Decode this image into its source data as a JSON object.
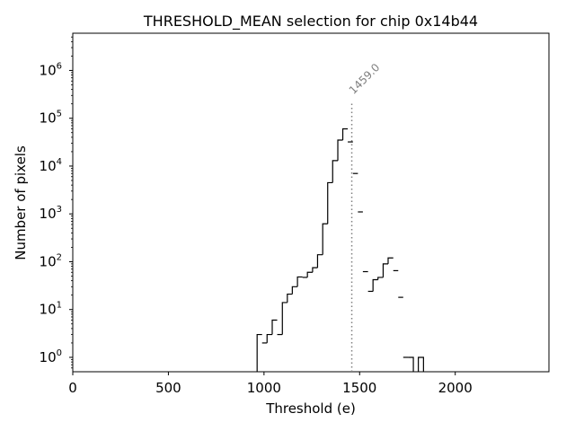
{
  "chart_data": {
    "type": "histogram",
    "title": "THRESHOLD_MEAN selection for chip 0x14b44",
    "xlabel": "Threshold (e)",
    "ylabel": "Number of pixels",
    "xlim": [
      0,
      2490
    ],
    "ylim": [
      0.5,
      6000000
    ],
    "yscale": "log",
    "x_ticks": [
      0,
      500,
      1000,
      1500,
      2000
    ],
    "x_tick_labels": [
      "0",
      "500",
      "1000",
      "1500",
      "2000"
    ],
    "y_ticks": [
      1,
      10,
      100,
      1000,
      10000,
      100000,
      1000000
    ],
    "y_tick_labels": [
      {
        "base": "10",
        "exp": "0"
      },
      {
        "base": "10",
        "exp": "1"
      },
      {
        "base": "10",
        "exp": "2"
      },
      {
        "base": "10",
        "exp": "3"
      },
      {
        "base": "10",
        "exp": "4"
      },
      {
        "base": "10",
        "exp": "5"
      },
      {
        "base": "10",
        "exp": "6"
      }
    ],
    "grid": false,
    "bin_width": 26.3,
    "bins": [
      {
        "x0": 964,
        "x1": 990,
        "count": 3
      },
      {
        "x0": 990,
        "x1": 1016,
        "count": 2
      },
      {
        "x0": 1016,
        "x1": 1043,
        "count": 3
      },
      {
        "x0": 1043,
        "x1": 1069,
        "count": 6
      },
      {
        "x0": 1069,
        "x1": 1096,
        "count": 3
      },
      {
        "x0": 1096,
        "x1": 1122,
        "count": 14
      },
      {
        "x0": 1122,
        "x1": 1148,
        "count": 21
      },
      {
        "x0": 1148,
        "x1": 1175,
        "count": 30
      },
      {
        "x0": 1175,
        "x1": 1201,
        "count": 48
      },
      {
        "x0": 1201,
        "x1": 1227,
        "count": 47
      },
      {
        "x0": 1227,
        "x1": 1254,
        "count": 60
      },
      {
        "x0": 1254,
        "x1": 1280,
        "count": 75
      },
      {
        "x0": 1280,
        "x1": 1307,
        "count": 140
      },
      {
        "x0": 1307,
        "x1": 1333,
        "count": 620
      },
      {
        "x0": 1333,
        "x1": 1359,
        "count": 4500
      },
      {
        "x0": 1359,
        "x1": 1386,
        "count": 13000
      },
      {
        "x0": 1386,
        "x1": 1412,
        "count": 35000
      },
      {
        "x0": 1412,
        "x1": 1438,
        "count": 60000
      },
      {
        "x0": 1438,
        "x1": 1465,
        "count": 32000
      },
      {
        "x0": 1465,
        "x1": 1491,
        "count": 7000
      },
      {
        "x0": 1491,
        "x1": 1517,
        "count": 1100
      },
      {
        "x0": 1517,
        "x1": 1544,
        "count": 62
      },
      {
        "x0": 1544,
        "x1": 1570,
        "count": 24
      },
      {
        "x0": 1570,
        "x1": 1596,
        "count": 42
      },
      {
        "x0": 1596,
        "x1": 1623,
        "count": 47
      },
      {
        "x0": 1623,
        "x1": 1649,
        "count": 90
      },
      {
        "x0": 1649,
        "x1": 1676,
        "count": 120
      },
      {
        "x0": 1676,
        "x1": 1702,
        "count": 65
      },
      {
        "x0": 1702,
        "x1": 1728,
        "count": 18
      },
      {
        "x0": 1728,
        "x1": 1755,
        "count": 1
      },
      {
        "x0": 1755,
        "x1": 1781,
        "count": 1
      },
      {
        "x0": 1781,
        "x1": 1807,
        "count": 0
      },
      {
        "x0": 1807,
        "x1": 1834,
        "count": 1
      }
    ],
    "reference_line": {
      "x": 1459.0,
      "label": "1459.0",
      "ymax": 220000,
      "color": "#808080"
    },
    "line_color": "#000000"
  }
}
